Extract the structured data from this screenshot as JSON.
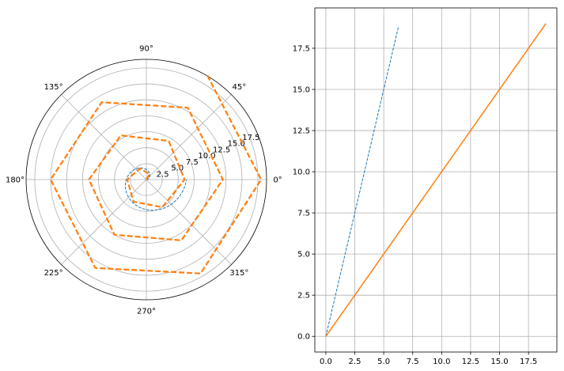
{
  "chart_data": [
    {
      "type": "polar-line",
      "theta_tick_labels": [
        "0°",
        "45°",
        "90°",
        "135°",
        "180°",
        "225°",
        "270°",
        "315°"
      ],
      "r_tick_labels": [
        "2.5",
        "5.0",
        "7.5",
        "10.0",
        "12.5",
        "15.0",
        "17.5"
      ],
      "r_ticks": [
        2.5,
        5.0,
        7.5,
        10.0,
        12.5,
        15.0,
        17.5
      ],
      "rlim": [
        0,
        18.85
      ],
      "grid": true,
      "series": [
        {
          "style": "dashed-thin",
          "color": "#1f77b4",
          "curve": "archimedean spiral r = theta (radians)",
          "theta_range_rad": [
            0,
            6.2832
          ]
        },
        {
          "style": "dashed-thick",
          "color": "#ff7f0e",
          "theta_step_deg": 60,
          "points": [
            {
              "theta_deg": 0,
              "r": 0
            },
            {
              "theta_deg": 60,
              "r": 1
            },
            {
              "theta_deg": 120,
              "r": 2
            },
            {
              "theta_deg": 180,
              "r": 3
            },
            {
              "theta_deg": 240,
              "r": 4
            },
            {
              "theta_deg": 300,
              "r": 5
            },
            {
              "theta_deg": 360,
              "r": 6
            },
            {
              "theta_deg": 420,
              "r": 7
            },
            {
              "theta_deg": 480,
              "r": 8
            },
            {
              "theta_deg": 540,
              "r": 9
            },
            {
              "theta_deg": 600,
              "r": 10
            },
            {
              "theta_deg": 660,
              "r": 11
            },
            {
              "theta_deg": 720,
              "r": 12
            },
            {
              "theta_deg": 780,
              "r": 13
            },
            {
              "theta_deg": 840,
              "r": 14
            },
            {
              "theta_deg": 900,
              "r": 15
            },
            {
              "theta_deg": 960,
              "r": 16
            },
            {
              "theta_deg": 1020,
              "r": 17
            },
            {
              "theta_deg": 1080,
              "r": 18
            },
            {
              "theta_deg": 1140,
              "r": 19
            }
          ]
        }
      ]
    },
    {
      "type": "line",
      "xlim": [
        -0.95,
        19.95
      ],
      "ylim": [
        -0.95,
        19.95
      ],
      "x_ticks": [
        0.0,
        2.5,
        5.0,
        7.5,
        10.0,
        12.5,
        15.0,
        17.5
      ],
      "y_ticks": [
        0.0,
        2.5,
        5.0,
        7.5,
        10.0,
        12.5,
        15.0,
        17.5
      ],
      "x_tick_labels": [
        "0.0",
        "2.5",
        "5.0",
        "7.5",
        "10.0",
        "12.5",
        "15.0",
        "17.5"
      ],
      "y_tick_labels": [
        "0.0",
        "2.5",
        "5.0",
        "7.5",
        "10.0",
        "12.5",
        "15.0",
        "17.5"
      ],
      "grid": true,
      "series": [
        {
          "style": "dashed-thin",
          "color": "#1f77b4",
          "x": [
            0,
            6.2832
          ],
          "y": [
            0,
            18.85
          ]
        },
        {
          "style": "solid",
          "color": "#ff7f0e",
          "x": [
            0,
            19
          ],
          "y": [
            0,
            19
          ]
        }
      ]
    }
  ]
}
